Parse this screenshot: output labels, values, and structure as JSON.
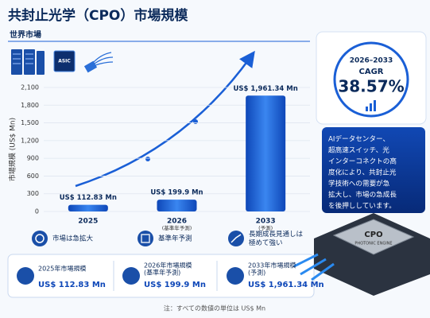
{
  "chart_data": {
    "type": "bar",
    "title": "共封止光学（CPO）市場規模",
    "subtitle": "世界市場",
    "y_label": "市場規模 (US$ Mn)",
    "categories": [
      "2025",
      "2026",
      "2033"
    ],
    "category_sublabels": [
      null,
      "(基準年予測)",
      "(予測)"
    ],
    "values": [
      112.83,
      199.9,
      1961.34
    ],
    "value_labels": [
      "US$ 112.83 Mn",
      "US$ 199.9 Mn",
      "US$ 1,961.34 Mn"
    ],
    "color": "#1a5fd6",
    "ylim": [
      0,
      2100
    ],
    "yticks": [
      0,
      300,
      600,
      900,
      {
        "value": 1200,
        "label": "1,200"
      },
      {
        "value": 1500,
        "label": "1,500"
      },
      {
        "value": 1800,
        "label": "1,800"
      },
      {
        "value": 2100,
        "label": "2,100"
      }
    ],
    "grid": true
  },
  "icon_label": "ASIC",
  "cagr": {
    "period": "2026–2033",
    "label": "CAGR",
    "value": "38.57%"
  },
  "description": [
    "AIデータセンター、",
    "超高速スイッチ、光",
    "インターコネクトの高",
    "度化により、共封止光",
    "学技術への需要が急",
    "拡大し、市場の急成長",
    "を後押ししています。"
  ],
  "highlights": [
    [
      "市場は急拡大"
    ],
    [
      "基準年予測"
    ],
    [
      "長期成長見通しは",
      "極めて強い"
    ]
  ],
  "summary_cards": [
    {
      "title": [
        "2025年市場規模"
      ],
      "value": "US$ 112.83 Mn"
    },
    {
      "title": [
        "2026年市場規模",
        "(基準年予測)"
      ],
      "value": "US$ 199.9 Mn"
    },
    {
      "title": [
        "2033年市場規模",
        "(予測)"
      ],
      "value": "US$ 1,961.34 Mn"
    }
  ],
  "chip": {
    "name": "CPO",
    "sub": "PHOTONIC ENGINE"
  },
  "note": "注：すべての数値の単位は US$ Mn"
}
